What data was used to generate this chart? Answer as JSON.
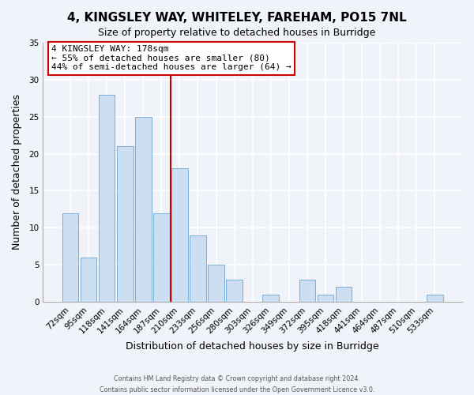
{
  "title": "4, KINGSLEY WAY, WHITELEY, FAREHAM, PO15 7NL",
  "subtitle": "Size of property relative to detached houses in Burridge",
  "xlabel": "Distribution of detached houses by size in Burridge",
  "ylabel": "Number of detached properties",
  "bar_color": "#ccdff2",
  "bar_edge_color": "#7aaed6",
  "categories": [
    "72sqm",
    "95sqm",
    "118sqm",
    "141sqm",
    "164sqm",
    "187sqm",
    "210sqm",
    "233sqm",
    "256sqm",
    "280sqm",
    "303sqm",
    "326sqm",
    "349sqm",
    "372sqm",
    "395sqm",
    "418sqm",
    "441sqm",
    "464sqm",
    "487sqm",
    "510sqm",
    "533sqm"
  ],
  "values": [
    12,
    6,
    28,
    21,
    25,
    12,
    18,
    9,
    5,
    3,
    0,
    1,
    0,
    3,
    1,
    2,
    0,
    0,
    0,
    0,
    1
  ],
  "ylim": [
    0,
    35
  ],
  "yticks": [
    0,
    5,
    10,
    15,
    20,
    25,
    30,
    35
  ],
  "vline_x": 5.5,
  "vline_color": "#cc0000",
  "annotation_line1": "4 KINGSLEY WAY: 178sqm",
  "annotation_line2": "← 55% of detached houses are smaller (80)",
  "annotation_line3": "44% of semi-detached houses are larger (64) →",
  "annotation_box_color": "#ffffff",
  "annotation_box_edge": "#cc0000",
  "footer_line1": "Contains HM Land Registry data © Crown copyright and database right 2024.",
  "footer_line2": "Contains public sector information licensed under the Open Government Licence v3.0.",
  "background_color": "#f0f4fa",
  "grid_color": "#dce8f5",
  "title_fontsize": 11,
  "subtitle_fontsize": 9,
  "title_fontweight": "bold"
}
